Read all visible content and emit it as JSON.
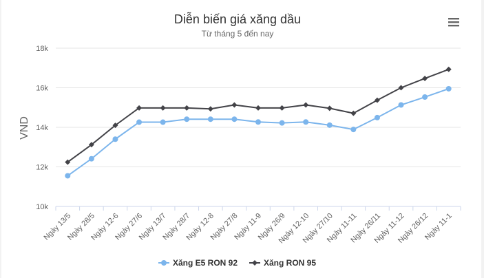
{
  "menu_icon": "hamburger-menu-icon",
  "chart_data": {
    "type": "line",
    "title": "Diễn biến giá xăng dầu",
    "subtitle": "Từ tháng 5 đến nay",
    "xlabel": "",
    "ylabel": "VND",
    "ylim": [
      10000,
      18000
    ],
    "yticks": [
      10000,
      12000,
      14000,
      16000,
      18000
    ],
    "ytick_labels": [
      "10k",
      "12k",
      "14k",
      "16k",
      "18k"
    ],
    "grid": true,
    "legend_position": "bottom-center",
    "categories": [
      "Ngày 13/5",
      "Ngày 28/5",
      "Ngày 12-6",
      "Ngày 27/6",
      "Ngày 13/7",
      "Ngày 28/7",
      "Ngày 12-8",
      "Ngày 27/8",
      "Ngày 11-9",
      "Ngày 26/9",
      "Ngày 12-10",
      "Ngày 27/10",
      "Ngày 11-11",
      "Ngày 26/11",
      "Ngày 11-12",
      "Ngày 26/12",
      "Ngày 11-1"
    ],
    "series": [
      {
        "name": "Xăng E5 RON 92",
        "color": "#7cb5ec",
        "marker": "circle",
        "values": [
          11550,
          12410,
          13400,
          14260,
          14260,
          14410,
          14410,
          14410,
          14270,
          14220,
          14270,
          14110,
          13890,
          14490,
          15130,
          15530,
          15950
        ]
      },
      {
        "name": "Xăng RON 95",
        "color": "#434348",
        "marker": "diamond",
        "values": [
          12240,
          13120,
          14100,
          14980,
          14980,
          14980,
          14930,
          15130,
          14980,
          14980,
          15130,
          14960,
          14710,
          15370,
          16000,
          16470,
          16930
        ]
      }
    ]
  }
}
